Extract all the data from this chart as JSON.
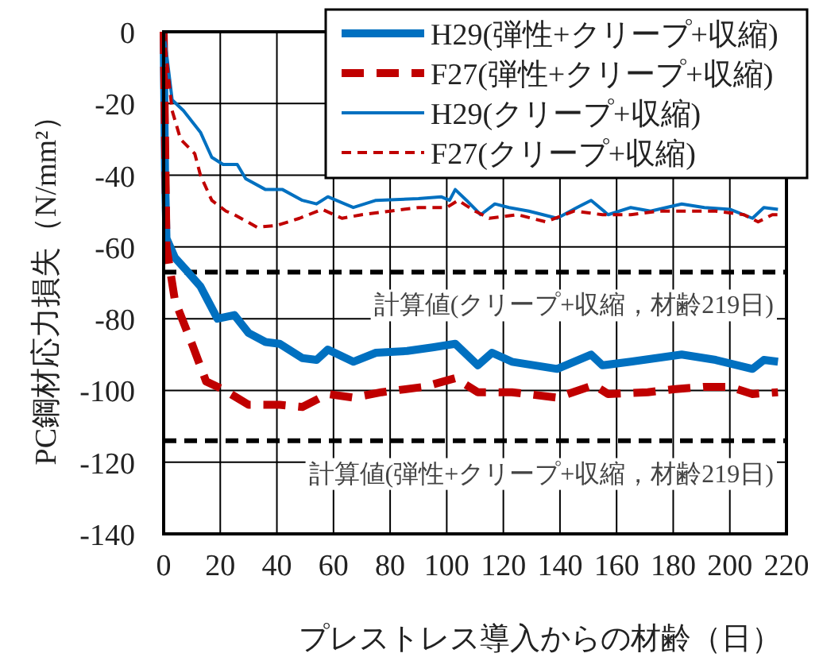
{
  "chart_data": {
    "type": "line",
    "xlabel": "プレストレス導入からの材齢（日）",
    "ylabel": "PC鋼材応力損失（N/mm²）",
    "xlim": [
      0,
      220
    ],
    "xticks": [
      0,
      20,
      40,
      60,
      80,
      100,
      120,
      140,
      160,
      180,
      200,
      220
    ],
    "ylim": [
      -140,
      0
    ],
    "yticks": [
      -140,
      -120,
      -100,
      -80,
      -60,
      -40,
      -20,
      0
    ],
    "grid": true,
    "legend": "top right",
    "series": [
      {
        "name": "H29(弾性+クリープ+収縮)",
        "color": "#0070c0",
        "line_style": "solid",
        "x": [
          0,
          0.5,
          1,
          4,
          8,
          13,
          19,
          25,
          30,
          36,
          41,
          49,
          54,
          58,
          67,
          75,
          86,
          95,
          103,
          111,
          116,
          123,
          139,
          151,
          155,
          165,
          183,
          195,
          208,
          212,
          217
        ],
        "values": [
          0,
          -40,
          -57.6,
          -63,
          -66.5,
          -71,
          -80,
          -79,
          -84,
          -86.5,
          -87,
          -91,
          -91.5,
          -88.6,
          -92,
          -89.5,
          -89,
          -88,
          -87,
          -93,
          -89.5,
          -92,
          -94,
          -90,
          -93,
          -92,
          -90,
          -91.5,
          -94,
          -91.5,
          -92
        ]
      },
      {
        "name": "F27(弾性+クリープ+収縮)",
        "color": "#c00000",
        "line_style": "dashed",
        "x": [
          0,
          1,
          4,
          10,
          15,
          21,
          30,
          41,
          49,
          58,
          67,
          77,
          92,
          103,
          111,
          123,
          139,
          152,
          157,
          171,
          180,
          191,
          200,
          208,
          217
        ],
        "values": [
          0,
          -60,
          -75,
          -87,
          -97.5,
          -99.7,
          -104,
          -104,
          -104.6,
          -101,
          -102,
          -100.5,
          -99,
          -96.6,
          -100.5,
          -100.5,
          -102,
          -98.5,
          -101,
          -100.5,
          -99.7,
          -99,
          -99,
          -101,
          -100.5
        ]
      },
      {
        "name": "H29(クリープ+収縮)",
        "color": "#0070c0",
        "line_style": "solid",
        "x": [
          0,
          1,
          3,
          7,
          13,
          17,
          21,
          26,
          29,
          36,
          42,
          49,
          54,
          58,
          67,
          75,
          90,
          98,
          101,
          103,
          107,
          112,
          117,
          122,
          129,
          139,
          146,
          151,
          157,
          165,
          172,
          183,
          191,
          200,
          208,
          212,
          217
        ],
        "values": [
          0,
          -6,
          -19,
          -22,
          -28,
          -35,
          -37,
          -37,
          -41,
          -44,
          -44,
          -47,
          -48,
          -46,
          -49,
          -47,
          -46.5,
          -46,
          -47,
          -44,
          -47,
          -51,
          -48,
          -49,
          -50,
          -52,
          -49,
          -47,
          -51,
          -49,
          -50,
          -48,
          -49,
          -49.5,
          -52,
          -49,
          -49.5
        ]
      },
      {
        "name": "F27(クリープ+収縮)",
        "color": "#c00000",
        "line_style": "dotted",
        "x": [
          0,
          3,
          6,
          11,
          13,
          17,
          22,
          25,
          33,
          40,
          48,
          56,
          63,
          70,
          80,
          90,
          100,
          104,
          110,
          115,
          125,
          135,
          145,
          155,
          165,
          175,
          185,
          195,
          205,
          210,
          215,
          218
        ],
        "values": [
          0,
          -22,
          -30,
          -34,
          -40,
          -47,
          -50,
          -51,
          -54.5,
          -54,
          -52,
          -49.5,
          -52,
          -51,
          -50,
          -49,
          -49,
          -47,
          -50,
          -52,
          -51,
          -53,
          -50,
          -51,
          -51,
          -50,
          -50,
          -50,
          -51,
          -53,
          -51,
          -51
        ]
      }
    ],
    "ref_lines": [
      {
        "axis": "y",
        "value": -67,
        "label": "計算値(クリープ+収縮，材齢219日)",
        "color": "#000000",
        "line_style": "dashed"
      },
      {
        "axis": "y",
        "value": -114,
        "label": "計算値(弾性+クリープ+収縮，材齢219日)",
        "color": "#000000",
        "line_style": "dashed"
      }
    ]
  }
}
